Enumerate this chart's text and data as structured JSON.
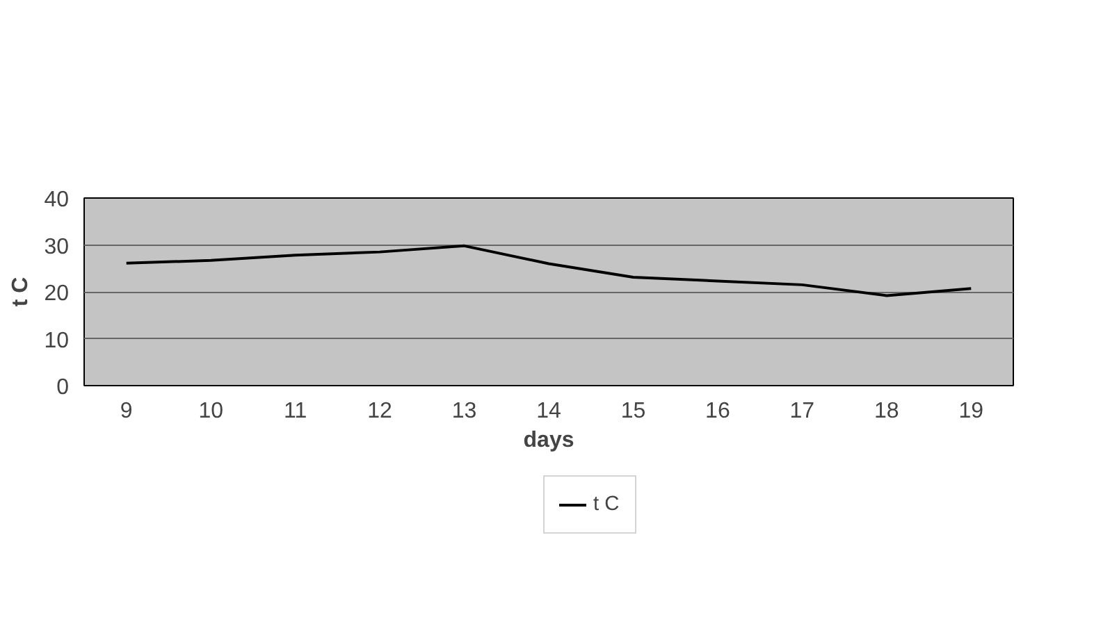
{
  "chart_data": {
    "type": "line",
    "xlabel": "days",
    "ylabel": "t C",
    "categories": [
      "9",
      "10",
      "11",
      "12",
      "13",
      "14",
      "15",
      "16",
      "17",
      "18",
      "19"
    ],
    "series": [
      {
        "name": "t C",
        "color": "#000000",
        "values": [
          26.1,
          26.7,
          27.8,
          28.5,
          29.8,
          26,
          23.1,
          22.3,
          21.5,
          19.2,
          20.7
        ]
      }
    ],
    "ylim": [
      0,
      40
    ],
    "yticks": [
      0,
      10,
      20,
      30,
      40
    ],
    "grid": "y",
    "legend": "bottom",
    "marker": "none",
    "line_style": "solid"
  }
}
